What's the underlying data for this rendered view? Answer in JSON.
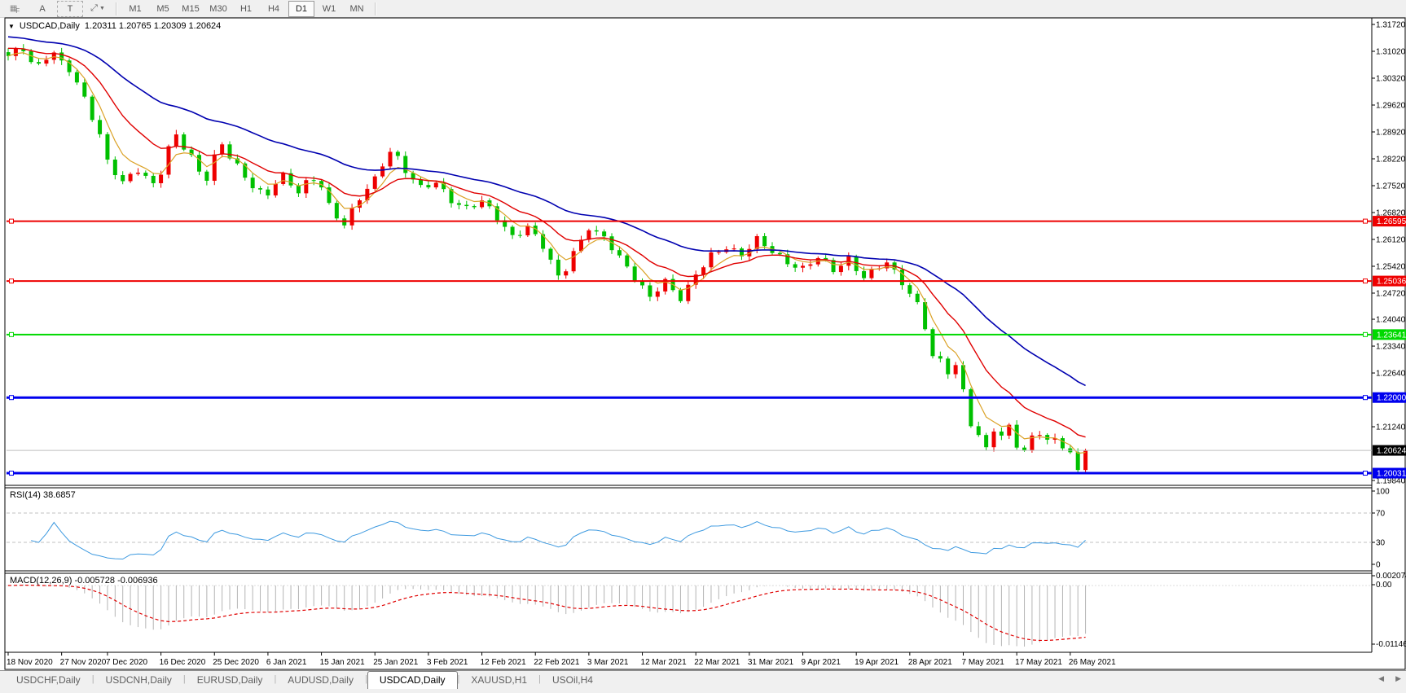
{
  "toolbar": {
    "grid_tool_label": "F",
    "font_tool_label": "A",
    "text_tool_label": "T",
    "timeframes": [
      "M1",
      "M5",
      "M15",
      "M30",
      "H1",
      "H4",
      "D1",
      "W1",
      "MN"
    ],
    "active_timeframe": "D1"
  },
  "chart_window": {
    "symbol_title": "USDCAD,Daily",
    "ohlc_text": "1.20311 1.20765 1.20309 1.20624"
  },
  "price_axis": {
    "ticks": [
      "1.31720",
      "1.31020",
      "1.30320",
      "1.29620",
      "1.28920",
      "1.28220",
      "1.27520",
      "1.26820",
      "1.26120",
      "1.25420",
      "1.24720",
      "1.24040",
      "1.23340",
      "1.22640",
      "1.21240",
      "1.19840"
    ]
  },
  "date_axis": {
    "labels": [
      "18 Nov 2020",
      "27 Nov 2020",
      "7 Dec 2020",
      "16 Dec 2020",
      "25 Dec 2020",
      "6 Jan 2021",
      "15 Jan 2021",
      "25 Jan 2021",
      "3 Feb 2021",
      "12 Feb 2021",
      "22 Feb 2021",
      "3 Mar 2021",
      "12 Mar 2021",
      "22 Mar 2021",
      "31 Mar 2021",
      "9 Apr 2021",
      "19 Apr 2021",
      "28 Apr 2021",
      "7 May 2021",
      "17 May 2021",
      "26 May 2021"
    ],
    "candle_indices": [
      0,
      7,
      13,
      20,
      27,
      34,
      41,
      48,
      55,
      62,
      69,
      76,
      83,
      90,
      97,
      104,
      111,
      118,
      125,
      132,
      139
    ]
  },
  "levels": [
    {
      "label": "1.26595",
      "value": 1.26595,
      "color": "#ee0000",
      "width": 2
    },
    {
      "label": "1.25036",
      "value": 1.25036,
      "color": "#ee0000",
      "width": 2
    },
    {
      "label": "1.23641",
      "value": 1.23641,
      "color": "#00d900",
      "width": 2
    },
    {
      "label": "1.22000",
      "value": 1.22,
      "color": "#0000ee",
      "width": 3
    },
    {
      "label": "1.20031",
      "value": 1.20031,
      "color": "#0000ee",
      "width": 3
    }
  ],
  "current_price": {
    "label": "1.20624",
    "value": 1.20624,
    "badge_color": "#000000",
    "line_color": "#bdbdbd"
  },
  "rsi_panel": {
    "label": "RSI(14) 38.6857",
    "period": 14,
    "axis_ticks": [
      "100",
      "70",
      "30",
      "0"
    ],
    "upper_level": 70,
    "lower_level": 30,
    "line_color": "#3e9ae0",
    "level_line_color": "#c0c0c0"
  },
  "macd_panel": {
    "label": "MACD(12,26,9) -0.005728 -0.006936",
    "axis_ticks": [
      "0.002074",
      "0.00",
      "-0.011462"
    ],
    "histogram_color": "#b4b4b4",
    "signal_color": "#e00000"
  },
  "tabs": {
    "items": [
      "USDCHF,Daily",
      "USDCNH,Daily",
      "EURUSD,Daily",
      "AUDUSD,Daily",
      "USDCAD,Daily",
      "XAUUSD,H1",
      "USOil,H4"
    ],
    "active_index": 4
  },
  "chart_data": {
    "type": "candlestick",
    "symbol": "USDCAD",
    "timeframe": "Daily",
    "last_ohlc": {
      "open": 1.20311,
      "high": 1.20765,
      "low": 1.20309,
      "close": 1.20624
    },
    "y_axis_range": [
      1.1984,
      1.3172
    ],
    "up_color": "#ee0000",
    "down_color": "#00c000",
    "candle_count": 142,
    "close_keyframes": [
      [
        0,
        1.3085
      ],
      [
        1,
        1.3098
      ],
      [
        2,
        1.3108
      ],
      [
        3,
        1.3075
      ],
      [
        4,
        1.3068
      ],
      [
        5,
        1.3092
      ],
      [
        6,
        1.31
      ],
      [
        7,
        1.3072
      ],
      [
        8,
        1.3052
      ],
      [
        10,
        1.2975
      ],
      [
        12,
        1.2885
      ],
      [
        13,
        1.282
      ],
      [
        14,
        1.2792
      ],
      [
        15,
        1.2762
      ],
      [
        16,
        1.2778
      ],
      [
        17,
        1.279
      ],
      [
        18,
        1.2768
      ],
      [
        19,
        1.2752
      ],
      [
        20,
        1.2788
      ],
      [
        21,
        1.2852
      ],
      [
        22,
        1.2888
      ],
      [
        23,
        1.2858
      ],
      [
        24,
        1.2828
      ],
      [
        25,
        1.2786
      ],
      [
        26,
        1.2768
      ],
      [
        27,
        1.2822
      ],
      [
        28,
        1.2856
      ],
      [
        29,
        1.283
      ],
      [
        30,
        1.2806
      ],
      [
        31,
        1.2778
      ],
      [
        32,
        1.2756
      ],
      [
        33,
        1.2736
      ],
      [
        34,
        1.2726
      ],
      [
        35,
        1.2758
      ],
      [
        36,
        1.2772
      ],
      [
        37,
        1.2752
      ],
      [
        38,
        1.2738
      ],
      [
        39,
        1.2762
      ],
      [
        40,
        1.2772
      ],
      [
        41,
        1.2756
      ],
      [
        42,
        1.27
      ],
      [
        43,
        1.2668
      ],
      [
        44,
        1.2648
      ],
      [
        45,
        1.2682
      ],
      [
        46,
        1.2716
      ],
      [
        47,
        1.2748
      ],
      [
        48,
        1.2772
      ],
      [
        49,
        1.2812
      ],
      [
        50,
        1.2846
      ],
      [
        51,
        1.2822
      ],
      [
        52,
        1.2788
      ],
      [
        54,
        1.2742
      ],
      [
        56,
        1.2762
      ],
      [
        58,
        1.2718
      ],
      [
        60,
        1.2692
      ],
      [
        62,
        1.2708
      ],
      [
        64,
        1.2668
      ],
      [
        66,
        1.2622
      ],
      [
        68,
        1.2648
      ],
      [
        70,
        1.2592
      ],
      [
        72,
        1.251
      ],
      [
        73,
        1.2536
      ],
      [
        74,
        1.258
      ],
      [
        75,
        1.2612
      ],
      [
        76,
        1.2648
      ],
      [
        77,
        1.263
      ],
      [
        78,
        1.2616
      ],
      [
        80,
        1.256
      ],
      [
        82,
        1.2512
      ],
      [
        84,
        1.2466
      ],
      [
        85,
        1.2488
      ],
      [
        86,
        1.2504
      ],
      [
        87,
        1.2478
      ],
      [
        88,
        1.2454
      ],
      [
        89,
        1.2482
      ],
      [
        90,
        1.2518
      ],
      [
        92,
        1.2574
      ],
      [
        94,
        1.2596
      ],
      [
        96,
        1.2568
      ],
      [
        98,
        1.2608
      ],
      [
        100,
        1.2582
      ],
      [
        102,
        1.2556
      ],
      [
        104,
        1.2536
      ],
      [
        106,
        1.2562
      ],
      [
        108,
        1.253
      ],
      [
        110,
        1.2564
      ],
      [
        112,
        1.2516
      ],
      [
        114,
        1.254
      ],
      [
        115,
        1.2548
      ],
      [
        116,
        1.2522
      ],
      [
        117,
        1.2498
      ],
      [
        118,
        1.2472
      ],
      [
        119,
        1.2446
      ],
      [
        120,
        1.239
      ],
      [
        121,
        1.231
      ],
      [
        122,
        1.2295
      ],
      [
        123,
        1.2265
      ],
      [
        124,
        1.2278
      ],
      [
        125,
        1.2212
      ],
      [
        126,
        1.2132
      ],
      [
        127,
        1.2102
      ],
      [
        128,
        1.207
      ],
      [
        129,
        1.2124
      ],
      [
        130,
        1.21
      ],
      [
        131,
        1.2124
      ],
      [
        132,
        1.2074
      ],
      [
        133,
        1.2054
      ],
      [
        134,
        1.2094
      ],
      [
        135,
        1.211
      ],
      [
        136,
        1.2088
      ],
      [
        137,
        1.2096
      ],
      [
        138,
        1.208
      ],
      [
        139,
        1.2054
      ],
      [
        140,
        1.2008
      ],
      [
        141,
        1.20624
      ]
    ],
    "wiggle": 0.0008,
    "wick": 0.0012,
    "moving_averages": [
      {
        "name": "ma-fast-orange",
        "period": 5,
        "seed_offset": 0.0,
        "color": "#dba227",
        "width": 1.2
      },
      {
        "name": "ma-mid-red",
        "period": 13,
        "seed_offset": 0.002,
        "color": "#e00000",
        "width": 1.4
      },
      {
        "name": "ma-slow-blue",
        "period": 34,
        "seed_offset": 0.005,
        "color": "#0000b0",
        "width": 1.6
      }
    ],
    "horizontal_levels": [
      1.26595,
      1.25036,
      1.23641,
      1.22,
      1.20031
    ],
    "indicators": {
      "rsi": {
        "period": 14,
        "last_value": 38.6857
      },
      "macd": {
        "fast": 12,
        "slow": 26,
        "signal": 9,
        "last_main": -0.005728,
        "last_signal": -0.006936
      }
    }
  }
}
